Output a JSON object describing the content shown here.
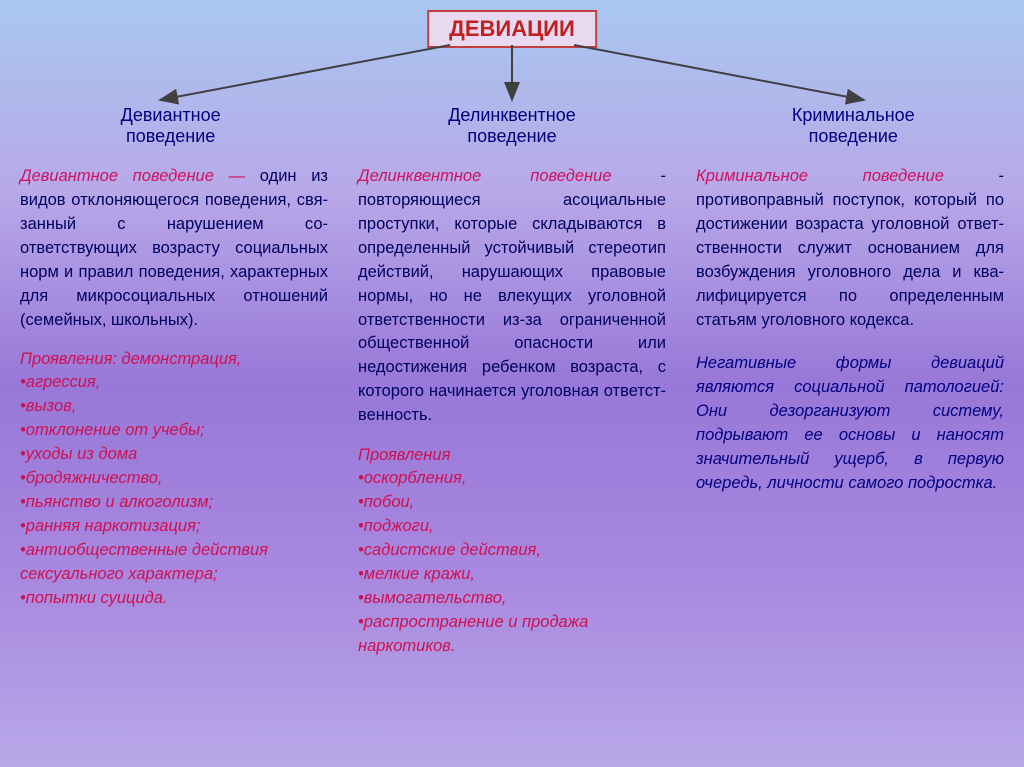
{
  "title": "ДЕВИАЦИИ",
  "colors": {
    "title_border": "#c04040",
    "title_text": "#c02020",
    "branch_text": "#000080",
    "definition_text": "#000060",
    "term_text": "#d01060",
    "manifest_text": "#d01050",
    "note_text": "#000080",
    "arrow_color": "#404040"
  },
  "branches": {
    "left": {
      "line1": "Девиантное",
      "line2": "поведение"
    },
    "mid": {
      "line1": "Делинквентное",
      "line2": "поведение"
    },
    "right": {
      "line1": "Криминальное",
      "line2": "поведение"
    }
  },
  "col1": {
    "term": "Девиантное поведение —",
    "def": " один из видов отклоня­ющегося поведения, свя­занный с нарушением со­ответствующих возрасту социальных норм и пра­вил поведения, характер­ных для микросоциальных отношений (семейных, школьных).",
    "manifest_title": "Проявления: демонстрация,",
    "items": [
      "•агрессия,",
      "•вызов,",
      "•отклонение от учебы;",
      "•уходы из дома",
      "•бродяжничество,",
      "•пьянство и алкоголизм;",
      "•ранняя наркотизация;",
      "•антиобщественные действия сексуального характера;",
      "•попытки суицида."
    ]
  },
  "col2": {
    "term": "Делинквентное поведение",
    "def": " - повторяющиеся асоциальные проступки, которые складыва­ются в определенный устой­чивый стереотип действий, нарушающих правовые нормы, но не влекущих уголовной ответственности из-за огра­ниченной общественной опас­ности или недостижения ре­бенком возраста, с которого начинается уголовная ответст­венность.",
    "manifest_title": "Проявления",
    "items": [
      "•оскорбления,",
      "•побои,",
      "•поджоги,",
      "•садистские действия,",
      "•мелкие кражи,",
      "•вымогательство,",
      "•распространение и продажа наркотиков."
    ]
  },
  "col3": {
    "term": "Криминальное поведение",
    "def": " - противоправный поступок, который по достижении возраста уголовной ответ­ственности служит основа­нием для возбуждения уголовного дела и ква­лифицируется по опреде­ленным статьям уголовного кодекса.",
    "note": "Негативные формы девиаций являются социальной пато­логией: Они дезорганизуют систему, подрывают ее основы и наносят значительный ущерб, в первую очередь, личности самого подростка."
  }
}
